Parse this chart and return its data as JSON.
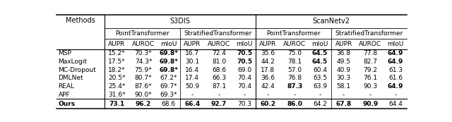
{
  "methods": [
    "MSP",
    "MaxLogit",
    "MC-Dropout",
    "DMLNet",
    "REAL",
    "APF",
    "Ours"
  ],
  "data": [
    [
      "15.2*",
      "70.3*",
      "69.8*",
      "16.7",
      "72.4",
      "70.5",
      "35.6",
      "75.0",
      "64.5",
      "36.8",
      "77.8",
      "64.9"
    ],
    [
      "17.5*",
      "74.3*",
      "69.8*",
      "30.1",
      "81.0",
      "70.5",
      "44.2",
      "78.1",
      "64.5",
      "49.5",
      "82.7",
      "64.9"
    ],
    [
      "18.2*",
      "75.9*",
      "69.8*",
      "16.4",
      "68.6",
      "69.0",
      "17.8",
      "57.0",
      "60.4",
      "40.9",
      "79.2",
      "61.3"
    ],
    [
      "20.5*",
      "80.7*",
      "67.2*",
      "17.4",
      "66.3",
      "70.4",
      "36.6",
      "76.8",
      "63.5",
      "30.3",
      "76.1",
      "61.6"
    ],
    [
      "25.4*",
      "87.6*",
      "69.7*",
      "50.9",
      "87.1",
      "70.4",
      "42.4",
      "87.3",
      "63.9",
      "58.1",
      "90.3",
      "64.9"
    ],
    [
      "31.6*",
      "90.0*",
      "69.3*",
      "-",
      "-",
      "-",
      "-",
      "-",
      "-",
      "-",
      "-",
      "-"
    ],
    [
      "73.1",
      "96.2",
      "68.6",
      "66.4",
      "92.7",
      "70.3",
      "60.2",
      "86.0",
      "64.2",
      "67.8",
      "90.9",
      "64.4"
    ]
  ],
  "bold_data": {
    "0": [
      2,
      5,
      8,
      11
    ],
    "1": [
      2,
      5,
      8,
      11
    ],
    "2": [
      2
    ],
    "3": [],
    "4": [
      7,
      11
    ],
    "5": [],
    "6": [
      0,
      1,
      3,
      4,
      6,
      7,
      9,
      10
    ]
  },
  "col_headers": [
    "AUPR",
    "AUROC",
    "mIoU",
    "AUPR",
    "AUROC",
    "mIoU",
    "AUPR",
    "AUROC",
    "mIoU",
    "AUPR",
    "AUROC",
    "mIoU"
  ],
  "figsize": [
    6.4,
    1.73
  ],
  "dpi": 100,
  "fs_data": 6.5,
  "fs_header": 6.5,
  "fs_group": 7.0,
  "fs_methods": 7.0
}
